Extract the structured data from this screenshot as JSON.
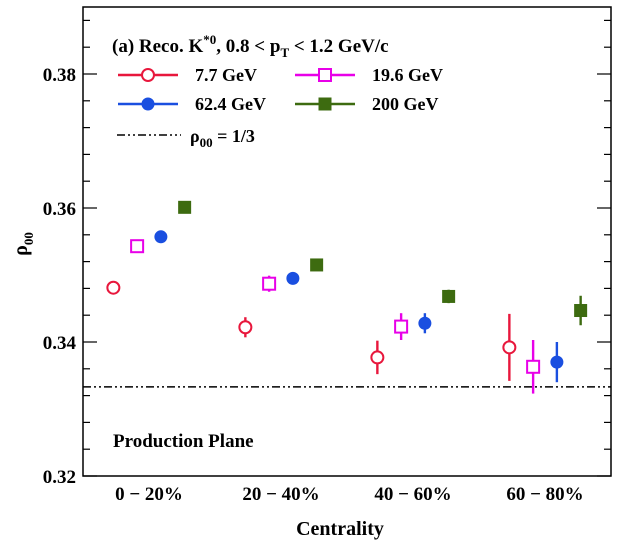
{
  "chart_data": {
    "type": "scatter",
    "title_parts": {
      "lead": "(a) Reco. K",
      "sup": "*0",
      "mid": ", 0.8 < p",
      "sub": "T",
      "tail": " < 1.2 GeV/c"
    },
    "xlabel": "Centrality",
    "ylabel": {
      "main": "ρ",
      "sub": "00"
    },
    "categories": [
      "0 − 20%",
      "20 − 40%",
      "40 − 60%",
      "60 − 80%"
    ],
    "ylim": [
      0.32,
      0.39
    ],
    "yticks": [
      0.32,
      0.34,
      0.36,
      0.38
    ],
    "ytick_labels": [
      "0.32",
      "0.34",
      "0.36",
      "0.38"
    ],
    "grid": false,
    "legend_position": "top-left",
    "reference_line": {
      "value": 0.3333,
      "label_main": "ρ",
      "label_sub": "00",
      "label_tail": " = 1/3",
      "style": "dash-dot",
      "color": "#000000"
    },
    "annotation": "Production Plane",
    "series": [
      {
        "name": "7.7 GeV",
        "marker": "open-circle",
        "color": "#e8173c",
        "offset": -0.27,
        "y": [
          0.3481,
          0.3422,
          0.3377,
          0.3392
        ],
        "yerr": [
          0.0008,
          0.0015,
          0.0025,
          0.005
        ]
      },
      {
        "name": "19.6 GeV",
        "marker": "open-square",
        "color": "#e800e8",
        "offset": -0.09,
        "y": [
          0.3543,
          0.3487,
          0.3423,
          0.3363
        ],
        "yerr": [
          0.0008,
          0.0012,
          0.002,
          0.004
        ]
      },
      {
        "name": "62.4 GeV",
        "marker": "filled-circle",
        "color": "#1a4fe0",
        "offset": 0.09,
        "y": [
          0.3557,
          0.3495,
          0.3428,
          0.337
        ],
        "yerr": [
          0.0007,
          0.0008,
          0.0015,
          0.003
        ]
      },
      {
        "name": "200 GeV",
        "marker": "filled-square",
        "color": "#3d6b10",
        "offset": 0.27,
        "y": [
          0.3601,
          0.3515,
          0.3468,
          0.3447
        ],
        "yerr": [
          0.0004,
          0.0005,
          0.001,
          0.0022
        ]
      }
    ]
  }
}
